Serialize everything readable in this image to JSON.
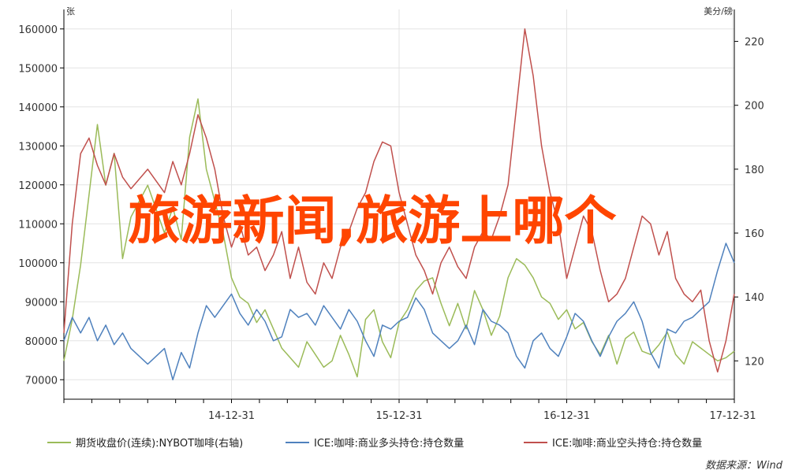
{
  "chart_data": {
    "type": "line",
    "overlay_title": "旅游新闻,旅游上哪个",
    "left_unit": "张",
    "right_unit": "美分/磅",
    "source": "数据来源：Wind",
    "x_ticks": [
      "14-12-31",
      "15-12-31",
      "16-12-31",
      "17-12-31"
    ],
    "left_axis": {
      "min": 65000,
      "max": 165000,
      "ticks": [
        70000,
        80000,
        90000,
        100000,
        110000,
        120000,
        130000,
        140000,
        150000,
        160000
      ]
    },
    "right_axis": {
      "min": 108,
      "max": 230,
      "ticks": [
        120,
        140,
        160,
        180,
        200,
        220
      ]
    },
    "x_range": [
      2013.0,
      2017.0
    ],
    "grid": true,
    "legend_position": "bottom",
    "series": [
      {
        "name": "期货收盘价(连续):NYBOT咖啡(右轴)",
        "axis": "right",
        "color": "#9bbb59",
        "x": [
          2013.0,
          2013.05,
          2013.1,
          2013.15,
          2013.2,
          2013.25,
          2013.3,
          2013.35,
          2013.4,
          2013.5,
          2013.6,
          2013.65,
          2013.7,
          2013.75,
          2013.8,
          2013.85,
          2013.9,
          2013.95,
          2014.0,
          2014.05,
          2014.1,
          2014.15,
          2014.2,
          2014.25,
          2014.3,
          2014.35,
          2014.4,
          2014.45,
          2014.5,
          2014.55,
          2014.6,
          2014.65,
          2014.7,
          2014.75,
          2014.8,
          2014.85,
          2014.9,
          2014.95,
          2015.0,
          2015.05,
          2015.1,
          2015.15,
          2015.2,
          2015.25,
          2015.3,
          2015.35,
          2015.4,
          2015.45,
          2015.5,
          2015.55,
          2015.6,
          2015.65,
          2015.7,
          2015.75,
          2015.8,
          2015.85,
          2015.9,
          2015.95,
          2016.0,
          2016.05,
          2016.1,
          2016.15,
          2016.2,
          2016.25,
          2016.3,
          2016.35,
          2016.4,
          2016.45,
          2016.5,
          2016.55,
          2016.6,
          2016.65,
          2016.7,
          2016.75,
          2016.8,
          2016.85,
          2016.9,
          2016.95,
          2017.0
        ],
        "y": [
          120,
          133,
          150,
          172,
          194,
          175,
          185,
          152,
          165,
          175,
          160,
          168,
          158,
          190,
          202,
          180,
          170,
          160,
          146,
          140,
          138,
          132,
          136,
          130,
          124,
          121,
          118,
          126,
          122,
          118,
          120,
          128,
          122,
          115,
          133,
          136,
          126,
          121,
          132,
          136,
          142,
          145,
          146,
          138,
          131,
          138,
          130,
          142,
          136,
          128,
          134,
          146,
          152,
          150,
          146,
          140,
          138,
          133,
          136,
          130,
          132,
          126,
          122,
          128,
          119,
          127,
          129,
          123,
          122,
          125,
          129,
          122,
          119,
          126,
          124,
          122,
          120,
          121,
          123
        ]
      },
      {
        "name": "ICE:咖啡:商业多头持仓:持仓数量",
        "axis": "left",
        "color": "#4f81bd",
        "x": [
          2013.0,
          2013.05,
          2013.1,
          2013.15,
          2013.2,
          2013.25,
          2013.3,
          2013.35,
          2013.4,
          2013.5,
          2013.6,
          2013.65,
          2013.7,
          2013.75,
          2013.8,
          2013.85,
          2013.9,
          2013.95,
          2014.0,
          2014.05,
          2014.1,
          2014.15,
          2014.2,
          2014.25,
          2014.3,
          2014.35,
          2014.4,
          2014.45,
          2014.5,
          2014.55,
          2014.6,
          2014.65,
          2014.7,
          2014.75,
          2014.8,
          2014.85,
          2014.9,
          2014.95,
          2015.0,
          2015.05,
          2015.1,
          2015.15,
          2015.2,
          2015.25,
          2015.3,
          2015.35,
          2015.4,
          2015.45,
          2015.5,
          2015.55,
          2015.6,
          2015.65,
          2015.7,
          2015.75,
          2015.8,
          2015.85,
          2015.9,
          2015.95,
          2016.0,
          2016.05,
          2016.1,
          2016.15,
          2016.2,
          2016.25,
          2016.3,
          2016.35,
          2016.4,
          2016.45,
          2016.5,
          2016.55,
          2016.6,
          2016.65,
          2016.7,
          2016.75,
          2016.8,
          2016.85,
          2016.9,
          2016.95,
          2017.0
        ],
        "y": [
          80000,
          86000,
          82000,
          86000,
          80000,
          84000,
          79000,
          82000,
          78000,
          74000,
          78000,
          70000,
          77000,
          73000,
          82000,
          89000,
          86000,
          89000,
          92000,
          87000,
          84000,
          88000,
          85000,
          80000,
          81000,
          88000,
          86000,
          87000,
          84000,
          89000,
          86000,
          83000,
          88000,
          85000,
          80000,
          76000,
          84000,
          83000,
          85000,
          86000,
          91000,
          88000,
          82000,
          80000,
          78000,
          80000,
          84000,
          79000,
          88000,
          85000,
          84000,
          82000,
          76000,
          73000,
          80000,
          82000,
          78000,
          76000,
          81000,
          87000,
          85000,
          80000,
          76000,
          81000,
          85000,
          87000,
          90000,
          85000,
          77000,
          73000,
          83000,
          82000,
          85000,
          86000,
          88000,
          90000,
          98000,
          105000,
          100000
        ]
      },
      {
        "name": "ICE:咖啡:商业空头持仓:持仓数量",
        "axis": "left",
        "color": "#c0504d",
        "x": [
          2013.0,
          2013.05,
          2013.1,
          2013.15,
          2013.2,
          2013.25,
          2013.3,
          2013.35,
          2013.4,
          2013.5,
          2013.6,
          2013.65,
          2013.7,
          2013.75,
          2013.8,
          2013.85,
          2013.9,
          2013.95,
          2014.0,
          2014.05,
          2014.1,
          2014.15,
          2014.2,
          2014.25,
          2014.3,
          2014.35,
          2014.4,
          2014.45,
          2014.5,
          2014.55,
          2014.6,
          2014.65,
          2014.7,
          2014.75,
          2014.8,
          2014.85,
          2014.9,
          2014.95,
          2015.0,
          2015.05,
          2015.1,
          2015.15,
          2015.2,
          2015.25,
          2015.3,
          2015.35,
          2015.4,
          2015.45,
          2015.5,
          2015.55,
          2015.6,
          2015.65,
          2015.7,
          2015.75,
          2015.8,
          2015.85,
          2015.9,
          2015.95,
          2016.0,
          2016.05,
          2016.1,
          2016.15,
          2016.2,
          2016.25,
          2016.3,
          2016.35,
          2016.4,
          2016.45,
          2016.5,
          2016.55,
          2016.6,
          2016.65,
          2016.7,
          2016.75,
          2016.8,
          2016.85,
          2016.9,
          2016.95,
          2017.0
        ],
        "y": [
          82000,
          110000,
          128000,
          132000,
          125000,
          120000,
          128000,
          122000,
          119000,
          124000,
          118000,
          126000,
          120000,
          128000,
          138000,
          132000,
          124000,
          112000,
          104000,
          110000,
          102000,
          104000,
          98000,
          102000,
          108000,
          96000,
          104000,
          95000,
          92000,
          100000,
          96000,
          104000,
          108000,
          114000,
          118000,
          126000,
          131000,
          130000,
          118000,
          110000,
          102000,
          98000,
          92000,
          100000,
          104000,
          99000,
          96000,
          104000,
          108000,
          106000,
          112000,
          120000,
          140000,
          160000,
          148000,
          130000,
          118000,
          110000,
          96000,
          104000,
          112000,
          108000,
          98000,
          90000,
          92000,
          96000,
          104000,
          112000,
          110000,
          102000,
          108000,
          96000,
          92000,
          90000,
          93000,
          80000,
          72000,
          80000,
          92000
        ]
      }
    ]
  }
}
